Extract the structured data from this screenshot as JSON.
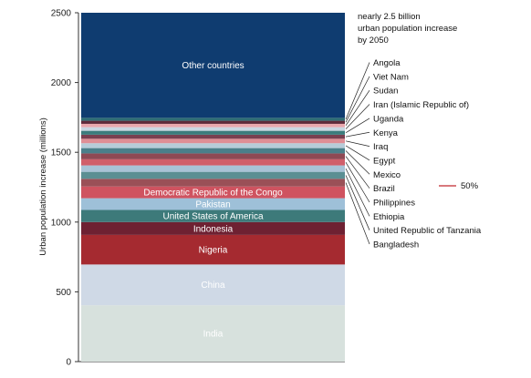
{
  "chart_data": {
    "type": "bar",
    "stacked": true,
    "ylabel": "Urban population increase (millions)",
    "ylim": [
      0,
      2500
    ],
    "yticks": [
      0,
      500,
      1000,
      1500,
      2000,
      2500
    ],
    "annotation": [
      "nearly 2.5 billion",
      "urban population increase",
      "by 2050"
    ],
    "marker_label": "50%",
    "marker_color": "#c1272d",
    "segments": [
      {
        "name": "India",
        "value": 404,
        "color": "#d7e1dd",
        "labeled": true,
        "label_color": "#111111"
      },
      {
        "name": "China",
        "value": 292,
        "color": "#cfd9e6",
        "labeled": true,
        "label_color": "#111111"
      },
      {
        "name": "Nigeria",
        "value": 212,
        "color": "#a52a30",
        "labeled": true,
        "label_color": "#ffffff"
      },
      {
        "name": "Indonesia",
        "value": 92,
        "color": "#6e2132",
        "labeled": true,
        "label_color": "#ffffff"
      },
      {
        "name": "United States of America",
        "value": 87,
        "color": "#3d7a7a",
        "labeled": true,
        "label_color": "#ffffff"
      },
      {
        "name": "Pakistan",
        "value": 84,
        "color": "#9ec0d8",
        "labeled": true,
        "label_color": "#ffffff"
      },
      {
        "name": "Democratic Republic of the Congo",
        "value": 84,
        "color": "#cf5360",
        "labeled": true,
        "label_color": "#ffffff"
      },
      {
        "name": "Bangladesh",
        "value": 55,
        "color": "#9a5057",
        "labeled": false
      },
      {
        "name": "United Republic of Tanzania",
        "value": 50,
        "color": "#5b8f93",
        "labeled": false
      },
      {
        "name": "Ethiopia",
        "value": 46,
        "color": "#a8c3d6",
        "labeled": false
      },
      {
        "name": "Philippines",
        "value": 44,
        "color": "#d05f6a",
        "labeled": false
      },
      {
        "name": "Brazil",
        "value": 42,
        "color": "#8f4954",
        "labeled": false
      },
      {
        "name": "Mexico",
        "value": 38,
        "color": "#4b7f8a",
        "labeled": false
      },
      {
        "name": "Egypt",
        "value": 35,
        "color": "#b6ccd9",
        "labeled": false
      },
      {
        "name": "Iraq",
        "value": 32,
        "color": "#df8e95",
        "labeled": false
      },
      {
        "name": "Kenya",
        "value": 29,
        "color": "#7a3f50",
        "labeled": false
      },
      {
        "name": "Uganda",
        "value": 28,
        "color": "#3c7c7c",
        "labeled": false
      },
      {
        "name": "Iran (Islamic Republic of)",
        "value": 26,
        "color": "#c9d7e2",
        "labeled": false
      },
      {
        "name": "Sudan",
        "value": 24,
        "color": "#e9a7ad",
        "labeled": false
      },
      {
        "name": "Viet Nam",
        "value": 22,
        "color": "#5f2a3a",
        "labeled": false
      },
      {
        "name": "Angola",
        "value": 21,
        "color": "#2f6e74",
        "labeled": false
      },
      {
        "name": "Other countries",
        "value": 753,
        "color": "#0f3c70",
        "labeled": true,
        "label_color": "#ffffff"
      }
    ],
    "side_labels": [
      "Angola",
      "Viet Nam",
      "Sudan",
      "Iran (Islamic Republic of)",
      "Uganda",
      "Kenya",
      "Iraq",
      "Egypt",
      "Mexico",
      "Brazil",
      "Philippines",
      "Ethiopia",
      "United Republic of Tanzania",
      "Bangladesh"
    ]
  }
}
